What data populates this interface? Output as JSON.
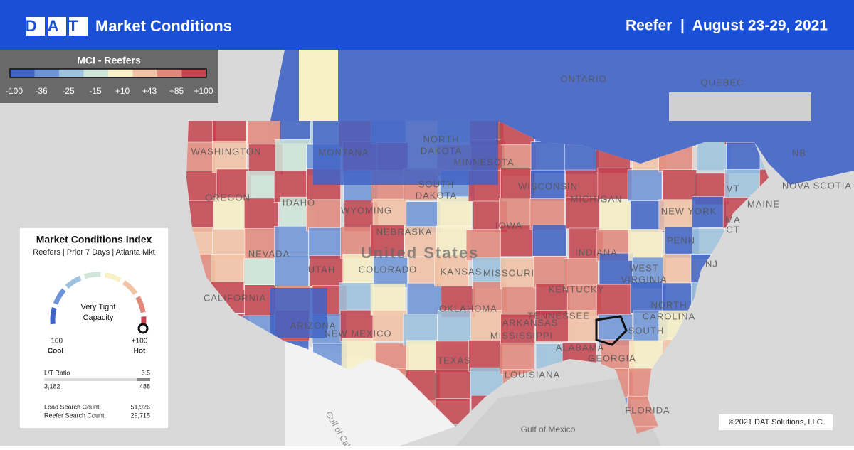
{
  "header": {
    "logo": "DAT",
    "title": "Market Conditions",
    "right": "Reefer  |  August 23-29, 2021"
  },
  "legend": {
    "title": "MCI - Reefers",
    "ticks": [
      "-100",
      "-36",
      "-25",
      "-15",
      "+10",
      "+43",
      "+85",
      "+100"
    ],
    "colors": [
      "#3f63c6",
      "#6f95d8",
      "#9dc3df",
      "#cfe6d9",
      "#f8f0c6",
      "#f3c3a6",
      "#e3897c",
      "#c5434f"
    ]
  },
  "panel": {
    "title": "Market Conditions Index",
    "subtitle": "Reefers | Prior 7 Days | Atlanta Mkt",
    "gauge_text": [
      "Very Tight",
      "Capacity"
    ],
    "min": "-100",
    "min_label": "Cool",
    "max": "+100",
    "max_label": "Hot",
    "ratio_label": "L/T Ratio",
    "ratio": "6.5",
    "loads": "3,182",
    "trucks": "488",
    "load_search_label": "Load Search Count:",
    "load_search": "51,926",
    "reefer_search_label": "Reefer Search Count:",
    "reefer_search": "29,715"
  },
  "map": {
    "labels": [
      "ONTARIO",
      "QUEBEC",
      "NB",
      "NOVA SCOTIA",
      "WASHINGTON",
      "OREGON",
      "IDAHO",
      "MONTANA",
      "NORTH",
      "DAKOTA",
      "SOUTH",
      "DAKOTA",
      "MINNESOTA",
      "WYOMING",
      "NEBRASKA",
      "NEVADA",
      "UTAH",
      "COLORADO",
      "KANSAS",
      "IOWA",
      "WISCONSIN",
      "MICHIGAN",
      "INDIANA",
      "NEW YORK",
      "MAINE",
      "PENN",
      "NJ",
      "VT",
      "MA",
      "CT",
      "WEST",
      "VIRGINIA",
      "MISSOURI",
      "KENTUCKY",
      "TENNESSEE",
      "NORTH",
      "CAROLINA",
      "SOUTH",
      "OKLAHOMA",
      "ARKANSAS",
      "MISSISSIPPI",
      "ALABAMA",
      "GEORGIA",
      "LOUISIANA",
      "TEXAS",
      "NEW MEXICO",
      "ARIZONA",
      "CALIFORNIA",
      "FLORIDA"
    ],
    "country": "United States",
    "water": [
      "Gulf of California",
      "Gulf of Mexico"
    ]
  },
  "copyright": "©2021 DAT Solutions, LLC"
}
